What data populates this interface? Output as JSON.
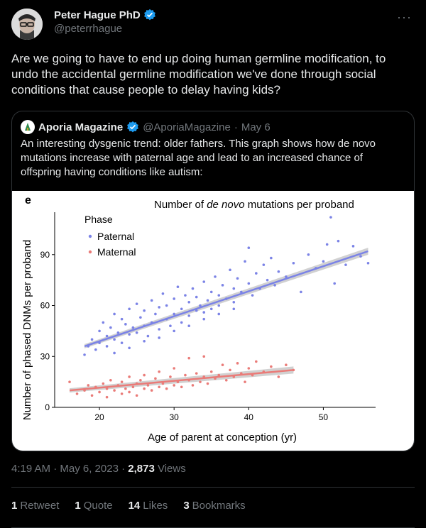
{
  "author": {
    "name": "Peter Hague PhD",
    "handle": "@peterrhague"
  },
  "tweet_text": "Are we going to have to end up doing human germline modification, to undo the accidental germline modification we've done through social conditions that cause people to delay having kids?",
  "quote": {
    "name": "Aporia Magazine",
    "handle": "@AporiaMagazine",
    "separator": "·",
    "date": "May 6",
    "text": "An interesting dysgenic trend: older fathers. This graph shows how de novo mutations increase with paternal age and lead to an increased chance of offspring having conditions like autism:"
  },
  "meta": {
    "time": "4:19 AM · May 6, 2023 ·",
    "views_count": "2,873",
    "views_label": "Views"
  },
  "stats": {
    "retweets_count": "1",
    "retweets_label": "Retweet",
    "quotes_count": "1",
    "quotes_label": "Quote",
    "likes_count": "14",
    "likes_label": "Likes",
    "bookmarks_count": "3",
    "bookmarks_label": "Bookmarks"
  },
  "colors": {
    "paternal": "#7b83e6",
    "maternal": "#ea7b78",
    "verified": "#1d9bf0"
  },
  "chart_data": {
    "type": "scatter",
    "panel_label": "e",
    "title_before": "Number of ",
    "title_italic": "de novo",
    "title_after": " mutations per proband",
    "xlabel": "Age of parent at conception (yr)",
    "ylabel": "Number of phased DNMs per proband",
    "xlim": [
      14,
      57
    ],
    "ylim": [
      0,
      115
    ],
    "xticks": [
      20,
      30,
      40,
      50
    ],
    "yticks": [
      0,
      30,
      60,
      90
    ],
    "legend_title": "Phase",
    "series": [
      {
        "name": "Paternal",
        "color": "#7b83e6",
        "trend": {
          "x0": 18,
          "y0": 36,
          "x1": 56,
          "y1": 92
        },
        "points": [
          [
            18,
            31
          ],
          [
            18.5,
            36
          ],
          [
            19,
            40
          ],
          [
            19.5,
            34
          ],
          [
            20,
            45
          ],
          [
            20,
            38
          ],
          [
            20.5,
            50
          ],
          [
            21,
            42
          ],
          [
            21,
            36
          ],
          [
            21.5,
            47
          ],
          [
            22,
            55
          ],
          [
            22,
            40
          ],
          [
            22.5,
            44
          ],
          [
            23,
            52
          ],
          [
            23,
            38
          ],
          [
            23.5,
            49
          ],
          [
            24,
            58
          ],
          [
            24,
            43
          ],
          [
            24.5,
            47
          ],
          [
            25,
            61
          ],
          [
            25,
            44
          ],
          [
            25.5,
            53
          ],
          [
            26,
            48
          ],
          [
            26,
            57
          ],
          [
            26.5,
            42
          ],
          [
            27,
            63
          ],
          [
            27,
            50
          ],
          [
            27.5,
            55
          ],
          [
            28,
            46
          ],
          [
            28,
            59
          ],
          [
            28.5,
            67
          ],
          [
            29,
            52
          ],
          [
            29,
            60
          ],
          [
            29.5,
            48
          ],
          [
            30,
            64
          ],
          [
            30,
            55
          ],
          [
            30.5,
            71
          ],
          [
            31,
            58
          ],
          [
            31,
            50
          ],
          [
            31.5,
            66
          ],
          [
            32,
            62
          ],
          [
            32,
            54
          ],
          [
            32.5,
            70
          ],
          [
            33,
            57
          ],
          [
            33,
            65
          ],
          [
            33.5,
            60
          ],
          [
            34,
            74
          ],
          [
            34,
            56
          ],
          [
            34.5,
            63
          ],
          [
            35,
            68
          ],
          [
            35,
            58
          ],
          [
            35.5,
            77
          ],
          [
            36,
            66
          ],
          [
            36,
            60
          ],
          [
            36.5,
            72
          ],
          [
            37,
            64
          ],
          [
            37.5,
            81
          ],
          [
            38,
            70
          ],
          [
            38,
            62
          ],
          [
            38.5,
            76
          ],
          [
            39,
            68
          ],
          [
            39.5,
            86
          ],
          [
            40,
            73
          ],
          [
            40,
            94
          ],
          [
            40.5,
            66
          ],
          [
            41,
            79
          ],
          [
            41.5,
            70
          ],
          [
            42,
            84
          ],
          [
            42.5,
            75
          ],
          [
            43,
            88
          ],
          [
            43.5,
            72
          ],
          [
            44,
            80
          ],
          [
            45,
            77
          ],
          [
            46,
            85
          ],
          [
            47,
            68
          ],
          [
            48,
            90
          ],
          [
            49,
            82
          ],
          [
            50,
            86
          ],
          [
            50.5,
            96
          ],
          [
            51,
            112
          ],
          [
            51.5,
            73
          ],
          [
            52,
            98
          ],
          [
            53,
            84
          ],
          [
            54,
            95
          ],
          [
            55,
            89
          ],
          [
            56,
            85
          ],
          [
            22,
            32
          ],
          [
            24,
            35
          ],
          [
            26,
            39
          ],
          [
            28,
            41
          ],
          [
            30,
            45
          ],
          [
            32,
            48
          ],
          [
            34,
            52
          ],
          [
            36,
            55
          ],
          [
            38,
            58
          ]
        ]
      },
      {
        "name": "Maternal",
        "color": "#ea7b78",
        "trend": {
          "x0": 16,
          "y0": 10,
          "x1": 46,
          "y1": 22
        },
        "points": [
          [
            16,
            15
          ],
          [
            17,
            8
          ],
          [
            18,
            10
          ],
          [
            18.5,
            13
          ],
          [
            19,
            7
          ],
          [
            19.5,
            12
          ],
          [
            20,
            9
          ],
          [
            20.5,
            14
          ],
          [
            21,
            11
          ],
          [
            21,
            6
          ],
          [
            21.5,
            16
          ],
          [
            22,
            10
          ],
          [
            22.5,
            13
          ],
          [
            23,
            8
          ],
          [
            23,
            15
          ],
          [
            23.5,
            11
          ],
          [
            24,
            18
          ],
          [
            24,
            9
          ],
          [
            24.5,
            12
          ],
          [
            25,
            14
          ],
          [
            25,
            7
          ],
          [
            25.5,
            16
          ],
          [
            26,
            11
          ],
          [
            26,
            19
          ],
          [
            26.5,
            13
          ],
          [
            27,
            10
          ],
          [
            27.5,
            17
          ],
          [
            28,
            12
          ],
          [
            28,
            21
          ],
          [
            28.5,
            14
          ],
          [
            29,
            11
          ],
          [
            29.5,
            18
          ],
          [
            30,
            13
          ],
          [
            30,
            23
          ],
          [
            30.5,
            15
          ],
          [
            31,
            12
          ],
          [
            31.5,
            19
          ],
          [
            32,
            16
          ],
          [
            32,
            29
          ],
          [
            32.5,
            13
          ],
          [
            33,
            20
          ],
          [
            33.5,
            15
          ],
          [
            34,
            18
          ],
          [
            34,
            30
          ],
          [
            34.5,
            14
          ],
          [
            35,
            21
          ],
          [
            35.5,
            17
          ],
          [
            36,
            19
          ],
          [
            36.5,
            25
          ],
          [
            37,
            16
          ],
          [
            37.5,
            22
          ],
          [
            38,
            18
          ],
          [
            38.5,
            26
          ],
          [
            39,
            20
          ],
          [
            39.5,
            15
          ],
          [
            40,
            23
          ],
          [
            40.5,
            19
          ],
          [
            41,
            27
          ],
          [
            42,
            21
          ],
          [
            43,
            24
          ],
          [
            44,
            18
          ],
          [
            45,
            25
          ],
          [
            46,
            22
          ]
        ]
      }
    ]
  }
}
